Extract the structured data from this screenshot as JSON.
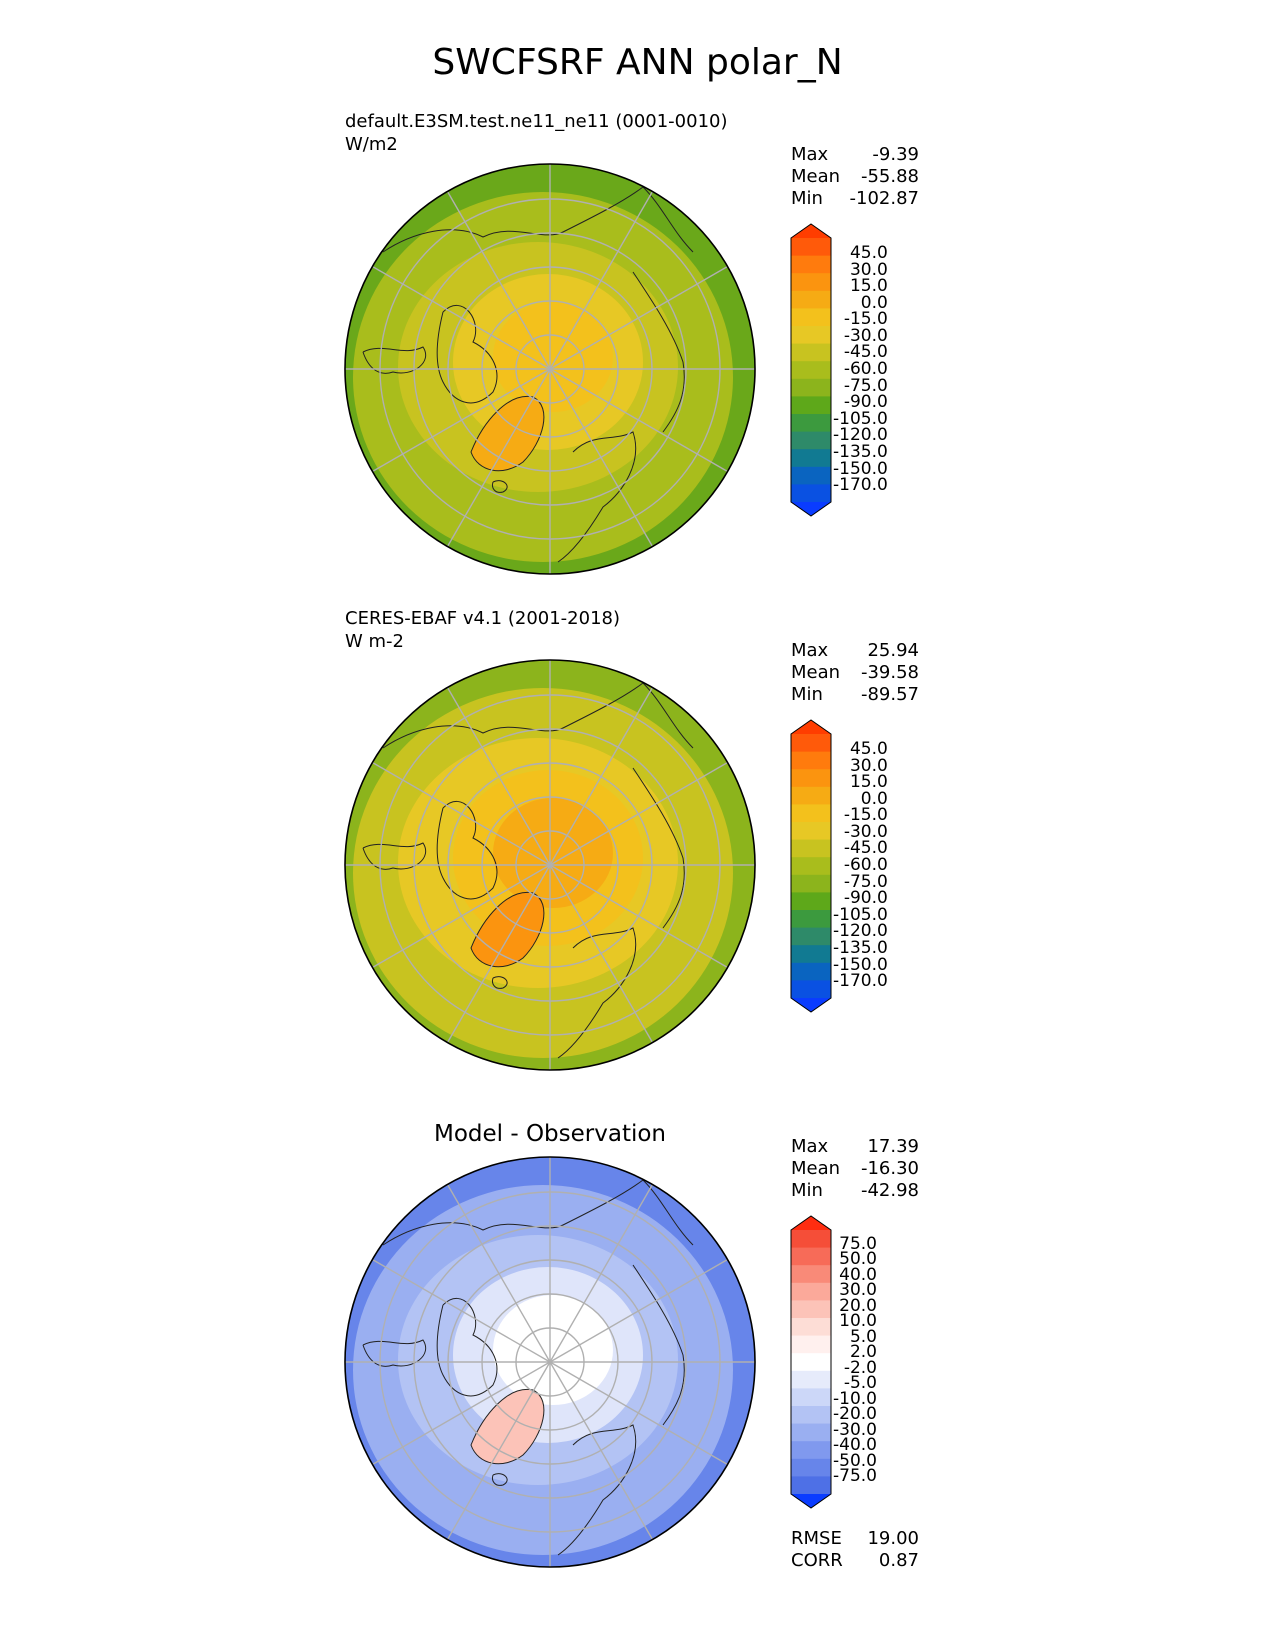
{
  "title": "SWCFSRF ANN polar_N",
  "panels": [
    {
      "id": "test",
      "title_line1": "default.E3SM.test.ne11_ne11 (0001-0010)",
      "title_line2": "W/m2",
      "centered_title": "",
      "stats": [
        {
          "label": "Max",
          "value": "-9.39"
        },
        {
          "label": "Mean",
          "value": "-55.88"
        },
        {
          "label": "Min",
          "value": "-102.87"
        }
      ],
      "colorbar_labels": [
        "45.0",
        "30.0",
        "15.0",
        "0.0",
        "-15.0",
        "-30.0",
        "-45.0",
        "-60.0",
        "-75.0",
        "-90.0",
        "-105.0",
        "-120.0",
        "-135.0",
        "-150.0",
        "-170.0"
      ],
      "colorbar_colors": [
        "#ff3d00",
        "#ff5a0a",
        "#ff7b0d",
        "#fb940f",
        "#f6ab14",
        "#f3c11c",
        "#e7c825",
        "#c8c320",
        "#a9bd1c",
        "#8cb41c",
        "#5ea81a",
        "#3c9a3e",
        "#2e8a69",
        "#117a92",
        "#0a64c0",
        "#0a51e2",
        "#0a3cff"
      ],
      "field_colors": {
        "low": "#6aa81a",
        "mid": "#a9bd1c",
        "high": "#c8c320",
        "high2": "#e7c825",
        "peak": "#f3c11c",
        "greenland": "#f6ab14"
      }
    },
    {
      "id": "ref",
      "title_line1": "CERES-EBAF v4.1 (2001-2018)",
      "title_line2": "W m-2",
      "centered_title": "",
      "stats": [
        {
          "label": "Max",
          "value": "25.94"
        },
        {
          "label": "Mean",
          "value": "-39.58"
        },
        {
          "label": "Min",
          "value": "-89.57"
        }
      ],
      "colorbar_labels": [
        "45.0",
        "30.0",
        "15.0",
        "0.0",
        "-15.0",
        "-30.0",
        "-45.0",
        "-60.0",
        "-75.0",
        "-90.0",
        "-105.0",
        "-120.0",
        "-135.0",
        "-150.0",
        "-170.0"
      ],
      "colorbar_colors": [
        "#ff3d00",
        "#ff5a0a",
        "#ff7b0d",
        "#fb940f",
        "#f6ab14",
        "#f3c11c",
        "#e7c825",
        "#c8c320",
        "#a9bd1c",
        "#8cb41c",
        "#5ea81a",
        "#3c9a3e",
        "#2e8a69",
        "#117a92",
        "#0a64c0",
        "#0a51e2",
        "#0a3cff"
      ],
      "field_colors": {
        "low": "#8cb41c",
        "mid": "#c8c320",
        "high": "#e7c825",
        "high2": "#f3c11c",
        "peak": "#f6ab14",
        "greenland": "#fb940f"
      }
    },
    {
      "id": "diff",
      "title_line1": "",
      "title_line2": "",
      "centered_title": "Model - Observation",
      "stats": [
        {
          "label": "Max",
          "value": "17.39"
        },
        {
          "label": "Mean",
          "value": "-16.30"
        },
        {
          "label": "Min",
          "value": "-42.98"
        }
      ],
      "colorbar_labels": [
        "75.0",
        "50.0",
        "40.0",
        "30.0",
        "20.0",
        "10.0",
        "5.0",
        "2.0",
        "-2.0",
        "-5.0",
        "-10.0",
        "-20.0",
        "-30.0",
        "-40.0",
        "-50.0",
        "-75.0"
      ],
      "colorbar_colors": [
        "#ff2d10",
        "#f54e38",
        "#f76b58",
        "#f98a78",
        "#fba99a",
        "#fcc3b8",
        "#fdddd6",
        "#fff0ee",
        "#ffffff",
        "#e6ebfb",
        "#ccd7f8",
        "#b3c3f4",
        "#9aaff1",
        "#8099ee",
        "#6785ea",
        "#4e70e6",
        "#0a3cff"
      ],
      "field_colors": {
        "low": "#6785ea",
        "mid": "#9aaff1",
        "high": "#b3c3f4",
        "high2": "#dfe5fa",
        "peak": "#ffffff",
        "greenland": "#fcc3b8"
      }
    }
  ],
  "bottom_stats": [
    {
      "label": "RMSE",
      "value": "19.00"
    },
    {
      "label": "CORR",
      "value": "0.87"
    }
  ]
}
